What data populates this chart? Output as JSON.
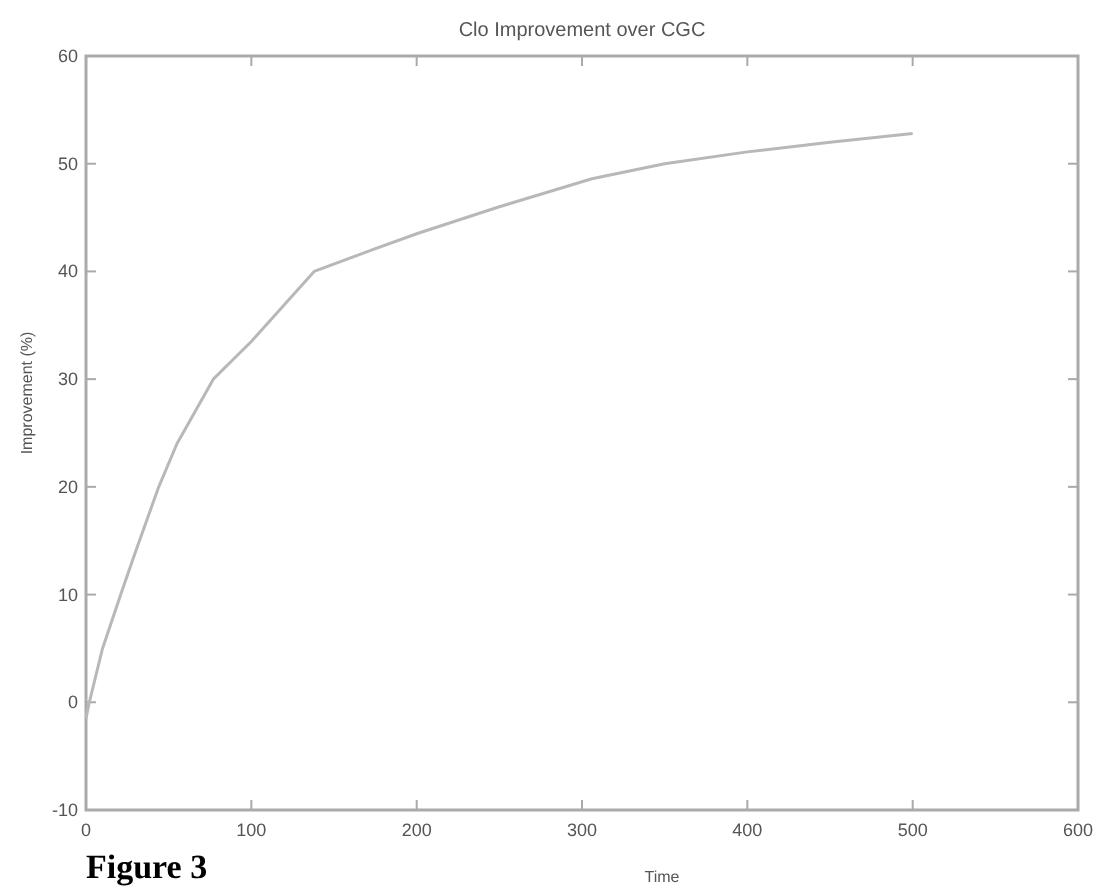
{
  "chart_data": {
    "type": "line",
    "title": "Clo Improvement over CGC",
    "xlabel": "Time",
    "ylabel": "Improvement (%)",
    "annotations": [
      "Figure 3"
    ],
    "series": [
      {
        "color": "#b8b8b8",
        "x": [
          0,
          2,
          10,
          21,
          30,
          44,
          55,
          77,
          100,
          138,
          173,
          200,
          250,
          306,
          350,
          400,
          450,
          500
        ],
        "values": [
          -1.5,
          0,
          5,
          10,
          14,
          20,
          24,
          30,
          33.5,
          40,
          42,
          43.5,
          46,
          48.6,
          50,
          51.1,
          52,
          52.8
        ]
      }
    ],
    "xlim": [
      0,
      600
    ],
    "xticks": [
      0,
      100,
      200,
      300,
      400,
      500,
      600
    ],
    "ylim": [
      -10,
      60
    ],
    "yticks": [
      -10,
      0,
      10,
      20,
      30,
      40,
      50,
      60
    ],
    "grid": false
  }
}
